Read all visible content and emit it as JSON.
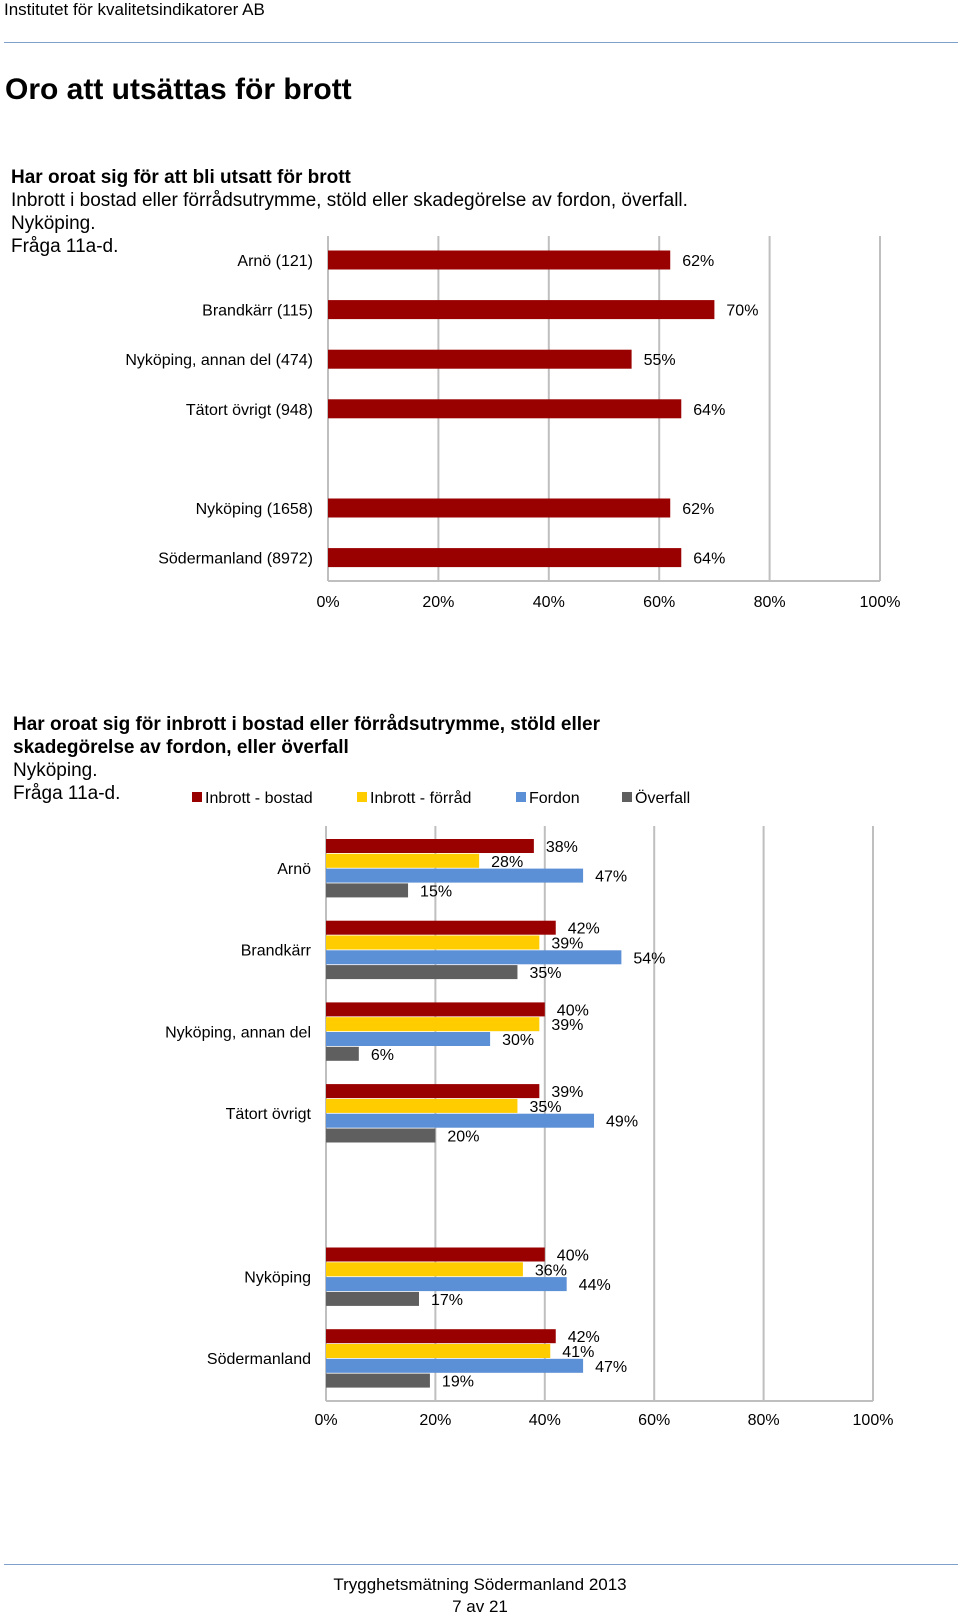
{
  "header": {
    "org": "Institutet för kvalitetsindikatorer AB"
  },
  "page_title": "Oro att utsättas för brott",
  "chart1_heading": {
    "line1": "Har oroat sig för att bli utsatt för brott",
    "line2": "Inbrott i bostad eller förrådsutrymme, stöld eller skadegörelse av fordon, överfall.",
    "line3": "Nyköping.",
    "line4": "Fråga 11a-d."
  },
  "chart2_heading": {
    "line1": "Har oroat sig för inbrott i bostad eller förrådsutrymme, stöld eller",
    "line2": "skadegörelse av fordon, eller överfall",
    "line3": "Nyköping.",
    "line4": "Fråga 11a-d."
  },
  "colors": {
    "dark_red": "#990000",
    "yellow": "#ffcc00",
    "blue": "#5b8fd6",
    "gray": "#5f5f5f",
    "grid": "#bfbfbf"
  },
  "chart_data": [
    {
      "type": "bar",
      "orientation": "horizontal",
      "categories": [
        "Arnö (121)",
        "Brandkärr (115)",
        "Nyköping, annan del (474)",
        "Tätort övrigt (948)",
        "",
        "Nyköping (1658)",
        "Södermanland (8972)"
      ],
      "values": [
        62,
        70,
        55,
        64,
        null,
        62,
        64
      ],
      "data_labels": [
        "62%",
        "70%",
        "55%",
        "64%",
        "",
        "62%",
        "64%"
      ],
      "x_ticks": [
        "0%",
        "20%",
        "40%",
        "60%",
        "80%",
        "100%"
      ],
      "xlim": [
        0,
        100
      ],
      "grid": true,
      "color": "#990000"
    },
    {
      "type": "bar",
      "orientation": "horizontal",
      "legend": [
        "Inbrott - bostad",
        "Inbrott - förråd",
        "Fordon",
        "Överfall"
      ],
      "legend_position": "top",
      "categories": [
        "Arnö",
        "Brandkärr",
        "Nyköping, annan del",
        "Tätort övrigt",
        "",
        "Nyköping",
        "Södermanland"
      ],
      "series": [
        {
          "name": "Inbrott - bostad",
          "color": "#990000",
          "values": [
            38,
            42,
            40,
            39,
            null,
            40,
            42
          ],
          "labels": [
            "38%",
            "42%",
            "40%",
            "39%",
            "",
            "40%",
            "42%"
          ]
        },
        {
          "name": "Inbrott - förråd",
          "color": "#ffcc00",
          "values": [
            28,
            39,
            39,
            35,
            null,
            36,
            41
          ],
          "labels": [
            "28%",
            "39%",
            "39%",
            "35%",
            "",
            "36%",
            "41%"
          ]
        },
        {
          "name": "Fordon",
          "color": "#5b8fd6",
          "values": [
            47,
            54,
            30,
            49,
            null,
            44,
            47
          ],
          "labels": [
            "47%",
            "54%",
            "30%",
            "49%",
            "",
            "44%",
            "47%"
          ]
        },
        {
          "name": "Överfall",
          "color": "#5f5f5f",
          "values": [
            15,
            35,
            6,
            20,
            null,
            17,
            19
          ],
          "labels": [
            "15%",
            "35%",
            "6%",
            "20%",
            "",
            "17%",
            "19%"
          ]
        }
      ],
      "x_ticks": [
        "0%",
        "20%",
        "40%",
        "60%",
        "80%",
        "100%"
      ],
      "xlim": [
        0,
        100
      ],
      "grid": true
    }
  ],
  "footer": {
    "title": "Trygghetsmätning Södermanland 2013",
    "page": "7 av 21"
  }
}
